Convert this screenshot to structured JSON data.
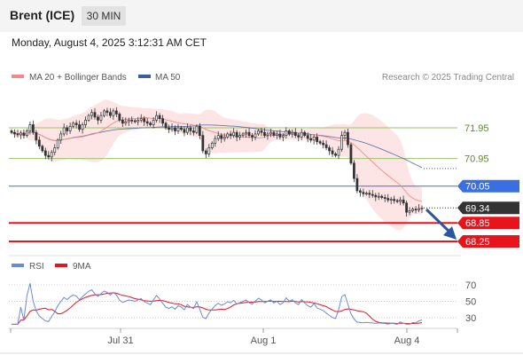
{
  "header": {
    "title": "Brent (ICE)",
    "timeframe": "30 MIN",
    "datetime": "Monday, August 4, 2025 3:12:31 AM CET"
  },
  "legend": {
    "ma20_label": "MA 20 + Bollinger Bands",
    "ma50_label": "MA 50",
    "credit": "Research © 2025 Trading Central",
    "rsi_label": "RSI",
    "rsi_ma_label": "9MA"
  },
  "colors": {
    "ma20": "#f08a8a",
    "ma50": "#3a5fa0",
    "bands": "#fde2e2",
    "resistance": "#9ac46a",
    "pivot": "#3a6fe0",
    "support": "#e8141c",
    "last_price": "#333333",
    "arrow": "#2a55a0",
    "rsi": "#6a8ad8",
    "rsi_ma": "#e8141c"
  },
  "chart_data": [
    {
      "type": "candlestick",
      "ylim": [
        68.0,
        72.6
      ],
      "x_ticks": [
        "Jul 31",
        "Aug 1",
        "Aug 4"
      ],
      "levels": [
        {
          "label": "71.95",
          "value": 71.95,
          "kind": "resistance"
        },
        {
          "label": "70.95",
          "value": 70.95,
          "kind": "resistance"
        },
        {
          "label": "70.05",
          "value": 70.05,
          "kind": "pivot"
        },
        {
          "label": "69.34",
          "value": 69.34,
          "kind": "last"
        },
        {
          "label": "68.85",
          "value": 68.85,
          "kind": "support"
        },
        {
          "label": "68.25",
          "value": 68.25,
          "kind": "support"
        }
      ],
      "forecast_target": 68.25,
      "close": [
        71.8,
        71.75,
        71.72,
        71.78,
        71.7,
        71.85,
        72.05,
        71.8,
        71.55,
        71.35,
        71.2,
        71.05,
        71.0,
        71.15,
        71.3,
        71.55,
        71.75,
        71.95,
        71.85,
        72.0,
        72.1,
        72.05,
        71.9,
        72.05,
        72.2,
        72.35,
        72.45,
        72.3,
        72.2,
        72.35,
        72.5,
        72.45,
        72.35,
        72.5,
        72.4,
        72.2,
        72.1,
        72.15,
        72.2,
        72.18,
        72.15,
        72.2,
        72.25,
        72.15,
        72.1,
        72.05,
        72.2,
        72.35,
        72.25,
        72.1,
        71.95,
        71.9,
        71.95,
        71.85,
        71.95,
        71.9,
        71.8,
        71.95,
        71.85,
        71.8,
        72.0,
        71.7,
        71.2,
        71.1,
        71.3,
        71.45,
        71.6,
        71.7,
        71.6,
        71.65,
        71.75,
        71.7,
        71.8,
        71.65,
        71.7,
        71.75,
        71.8,
        71.7,
        71.65,
        71.75,
        71.85,
        71.8,
        71.7,
        71.75,
        71.8,
        71.7,
        71.75,
        71.65,
        71.7,
        71.85,
        71.75,
        71.8,
        71.7,
        71.65,
        71.8,
        71.7,
        71.6,
        71.55,
        71.65,
        71.5,
        71.45,
        71.4,
        71.3,
        71.2,
        71.1,
        71.05,
        71.25,
        71.7,
        71.8,
        71.4,
        70.8,
        70.3,
        69.9,
        69.85,
        69.8,
        69.82,
        69.78,
        69.75,
        69.7,
        69.72,
        69.68,
        69.65,
        69.6,
        69.62,
        69.58,
        69.55,
        69.6,
        69.5,
        69.2,
        69.25,
        69.3,
        69.28,
        69.32,
        69.34
      ]
    },
    {
      "type": "line",
      "ylim": [
        20,
        80
      ],
      "y_ticks": [
        30,
        50,
        70
      ]
    }
  ]
}
